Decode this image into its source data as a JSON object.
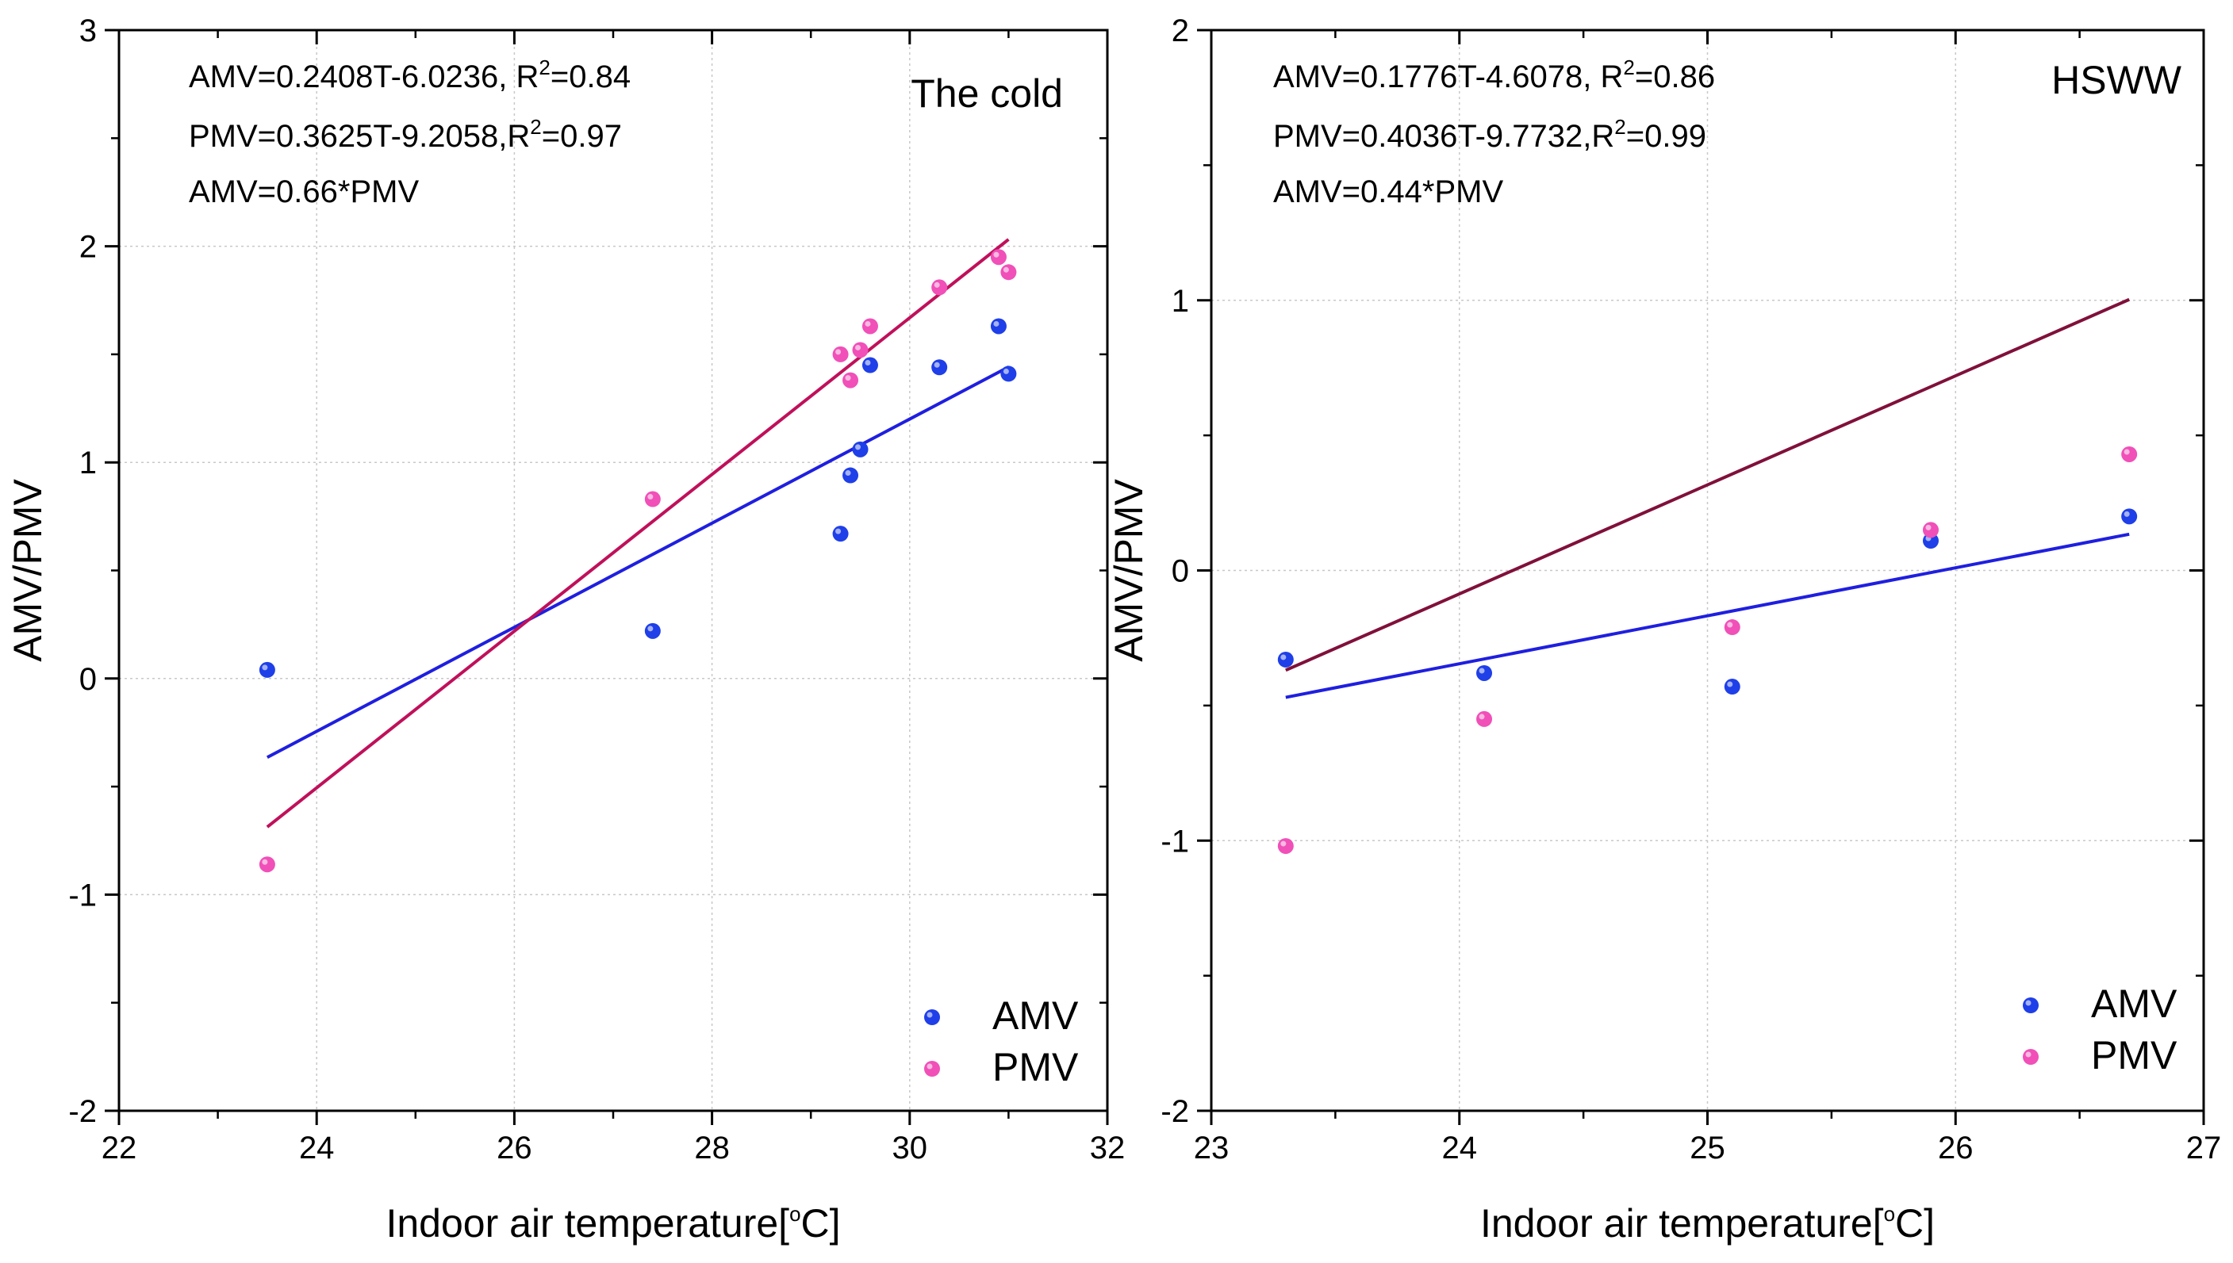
{
  "colors": {
    "amv": "#1f3fe8",
    "pmv": "#f050b8",
    "fit_amv": "#1f1fe0",
    "fit_pmv_left": "#c0105a",
    "fit_pmv_right": "#80103a"
  },
  "chart_data": [
    {
      "type": "scatter",
      "title": "The cold",
      "xlabel": "Indoor air temperature[°C]",
      "xlabel_pre": "Indoor air temperature[",
      "xlabel_sup": "o",
      "xlabel_post": "C]",
      "ylabel": "AMV/PMV",
      "xlim": [
        22,
        32
      ],
      "ylim": [
        -2,
        3
      ],
      "xticks": [
        22,
        24,
        26,
        28,
        30,
        32
      ],
      "yticks": [
        -2,
        -1,
        0,
        1,
        2,
        3
      ],
      "grid": true,
      "legend_position": "bottom-right",
      "annotations": [
        {
          "pre": "AMV=0.2408T-6.0236, R",
          "sup": "2",
          "post": "=0.84"
        },
        {
          "pre": "PMV=0.3625T-9.2058,R",
          "sup": "2",
          "post": "=0.97"
        },
        {
          "pre": "AMV=0.66*PMV",
          "sup": "",
          "post": ""
        }
      ],
      "series": [
        {
          "name": "AMV",
          "x": [
            23.5,
            27.4,
            29.3,
            29.4,
            29.5,
            29.6,
            30.3,
            30.9,
            31.0
          ],
          "y": [
            0.04,
            0.22,
            0.67,
            0.94,
            1.06,
            1.45,
            1.44,
            1.63,
            1.41
          ],
          "fit": {
            "slope": 0.2408,
            "intercept": -6.0236,
            "x_range": [
              23.5,
              31.0
            ]
          }
        },
        {
          "name": "PMV",
          "x": [
            23.5,
            27.4,
            29.3,
            29.4,
            29.5,
            29.6,
            30.3,
            30.9,
            31.0
          ],
          "y": [
            -0.86,
            0.83,
            1.5,
            1.38,
            1.52,
            1.63,
            1.81,
            1.95,
            1.88
          ],
          "fit": {
            "slope": 0.3625,
            "intercept": -9.2058,
            "x_range": [
              23.5,
              31.0
            ]
          }
        }
      ]
    },
    {
      "type": "scatter",
      "title": "HSWW",
      "xlabel": "Indoor air temperature[°C]",
      "xlabel_pre": "Indoor air temperature[",
      "xlabel_sup": "o",
      "xlabel_post": "C]",
      "ylabel": "AMV/PMV",
      "xlim": [
        23,
        27
      ],
      "ylim": [
        -2,
        2
      ],
      "xticks": [
        23,
        24,
        25,
        26,
        27
      ],
      "yticks": [
        -2,
        -1,
        0,
        1,
        2
      ],
      "grid": true,
      "legend_position": "bottom-right",
      "annotations": [
        {
          "pre": "AMV=0.1776T-4.6078, R",
          "sup": "2",
          "post": "=0.86"
        },
        {
          "pre": "PMV=0.4036T-9.7732,R",
          "sup": "2",
          "post": "=0.99"
        },
        {
          "pre": "AMV=0.44*PMV",
          "sup": "",
          "post": ""
        }
      ],
      "series": [
        {
          "name": "AMV",
          "x": [
            23.3,
            24.1,
            25.1,
            25.9,
            26.7
          ],
          "y": [
            -0.33,
            -0.38,
            -0.43,
            0.11,
            0.2
          ],
          "fit": {
            "slope": 0.1776,
            "intercept": -4.6078,
            "x_range": [
              23.3,
              26.7
            ]
          }
        },
        {
          "name": "PMV",
          "x": [
            23.3,
            24.1,
            25.1,
            25.9,
            26.7
          ],
          "y": [
            -1.02,
            -0.55,
            -0.21,
            0.15,
            0.43
          ],
          "fit": {
            "slope": 0.4036,
            "intercept": -9.7732,
            "x_range": [
              23.3,
              26.7
            ]
          }
        }
      ]
    }
  ]
}
